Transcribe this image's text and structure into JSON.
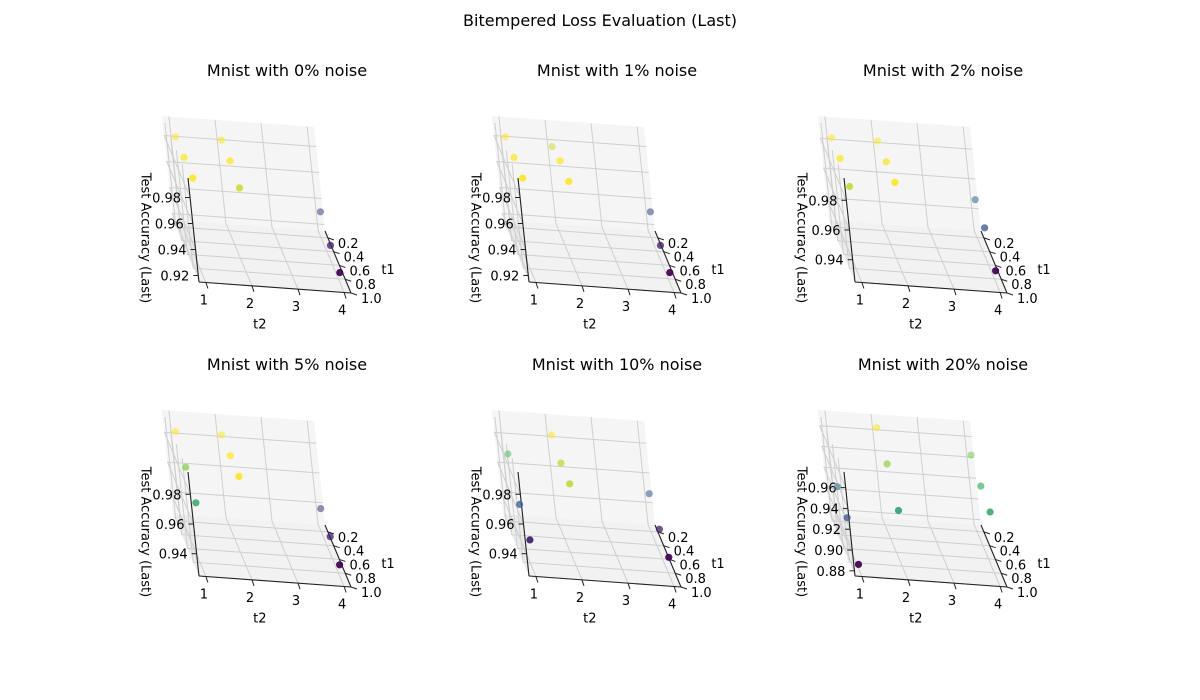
{
  "figure": {
    "suptitle": "Bitempered Loss Evaluation (Last)"
  },
  "chart_data": [
    {
      "type": "scatter3d",
      "title": "Mnist with 0% noise",
      "xlabel": "t1",
      "ylabel": "t2",
      "zlabel": "Test Accuracy (Last)",
      "x_ticks": [
        "0.2",
        "0.4",
        "0.6",
        "0.8",
        "1.0"
      ],
      "y_ticks": [
        "1",
        "2",
        "3",
        "4"
      ],
      "z_ticks": [
        "0.92",
        "0.94",
        "0.96",
        "0.98"
      ],
      "xlim": [
        0.1,
        1.0
      ],
      "ylim": [
        0.85,
        4.15
      ],
      "zlim": [
        0.915,
        0.995
      ],
      "colormap": "viridis",
      "points": [
        {
          "t1": 0.3,
          "t2": 1.0,
          "acc": 0.99
        },
        {
          "t1": 0.3,
          "t2": 2.0,
          "acc": 0.99
        },
        {
          "t1": 0.6,
          "t2": 1.0,
          "acc": 0.99
        },
        {
          "t1": 0.6,
          "t2": 2.0,
          "acc": 0.99
        },
        {
          "t1": 0.9,
          "t2": 1.0,
          "acc": 0.99
        },
        {
          "t1": 0.9,
          "t2": 2.0,
          "acc": 0.985
        },
        {
          "t1": 0.3,
          "t2": 4.0,
          "acc": 0.94
        },
        {
          "t1": 0.6,
          "t2": 4.0,
          "acc": 0.93
        },
        {
          "t1": 0.9,
          "t2": 4.0,
          "acc": 0.925
        }
      ]
    },
    {
      "type": "scatter3d",
      "title": "Mnist with 1% noise",
      "xlabel": "t1",
      "ylabel": "t2",
      "zlabel": "Test Accuracy (Last)",
      "x_ticks": [
        "0.2",
        "0.4",
        "0.6",
        "0.8",
        "1.0"
      ],
      "y_ticks": [
        "1",
        "2",
        "3",
        "4"
      ],
      "z_ticks": [
        "0.92",
        "0.94",
        "0.96",
        "0.98"
      ],
      "xlim": [
        0.1,
        1.0
      ],
      "ylim": [
        0.85,
        4.15
      ],
      "zlim": [
        0.915,
        0.995
      ],
      "colormap": "viridis",
      "points": [
        {
          "t1": 0.3,
          "t2": 1.0,
          "acc": 0.99
        },
        {
          "t1": 0.3,
          "t2": 2.0,
          "acc": 0.985
        },
        {
          "t1": 0.6,
          "t2": 1.0,
          "acc": 0.99
        },
        {
          "t1": 0.6,
          "t2": 2.0,
          "acc": 0.99
        },
        {
          "t1": 0.9,
          "t2": 1.0,
          "acc": 0.99
        },
        {
          "t1": 0.9,
          "t2": 2.0,
          "acc": 0.99
        },
        {
          "t1": 0.3,
          "t2": 4.0,
          "acc": 0.94
        },
        {
          "t1": 0.6,
          "t2": 4.0,
          "acc": 0.93
        },
        {
          "t1": 0.9,
          "t2": 4.0,
          "acc": 0.925
        }
      ]
    },
    {
      "type": "scatter3d",
      "title": "Mnist with 2% noise",
      "xlabel": "t1",
      "ylabel": "t2",
      "zlabel": "Test Accuracy (Last)",
      "x_ticks": [
        "0.2",
        "0.4",
        "0.6",
        "0.8",
        "1.0"
      ],
      "y_ticks": [
        "1",
        "2",
        "3",
        "4"
      ],
      "z_ticks": [
        "0.94",
        "0.96",
        "0.98"
      ],
      "xlim": [
        0.1,
        1.0
      ],
      "ylim": [
        0.85,
        4.15
      ],
      "zlim": [
        0.925,
        0.995
      ],
      "colormap": "viridis",
      "points": [
        {
          "t1": 0.3,
          "t2": 1.0,
          "acc": 0.99
        },
        {
          "t1": 0.3,
          "t2": 2.0,
          "acc": 0.99
        },
        {
          "t1": 0.6,
          "t2": 1.0,
          "acc": 0.99
        },
        {
          "t1": 0.6,
          "t2": 2.0,
          "acc": 0.99
        },
        {
          "t1": 0.9,
          "t2": 1.0,
          "acc": 0.985
        },
        {
          "t1": 0.9,
          "t2": 2.0,
          "acc": 0.99
        },
        {
          "t1": 0.3,
          "t2": 4.0,
          "acc": 0.955
        },
        {
          "t1": 0.6,
          "t2": 4.0,
          "acc": 0.95
        },
        {
          "t1": 0.9,
          "t2": 4.0,
          "acc": 0.935
        }
      ]
    },
    {
      "type": "scatter3d",
      "title": "Mnist with 5% noise",
      "xlabel": "t1",
      "ylabel": "t2",
      "zlabel": "Test Accuracy (Last)",
      "x_ticks": [
        "0.2",
        "0.4",
        "0.6",
        "0.8",
        "1.0"
      ],
      "y_ticks": [
        "1",
        "2",
        "3",
        "4"
      ],
      "z_ticks": [
        "0.94",
        "0.96",
        "0.98"
      ],
      "xlim": [
        0.1,
        1.0
      ],
      "ylim": [
        0.85,
        4.15
      ],
      "zlim": [
        0.925,
        0.995
      ],
      "colormap": "viridis",
      "points": [
        {
          "t1": 0.3,
          "t2": 1.0,
          "acc": 0.99
        },
        {
          "t1": 0.3,
          "t2": 2.0,
          "acc": 0.99
        },
        {
          "t1": 0.6,
          "t2": 1.0,
          "acc": 0.98
        },
        {
          "t1": 0.6,
          "t2": 2.0,
          "acc": 0.99
        },
        {
          "t1": 0.9,
          "t2": 1.0,
          "acc": 0.97
        },
        {
          "t1": 0.9,
          "t2": 2.0,
          "acc": 0.99
        },
        {
          "t1": 0.3,
          "t2": 4.0,
          "acc": 0.945
        },
        {
          "t1": 0.6,
          "t2": 4.0,
          "acc": 0.94
        },
        {
          "t1": 0.9,
          "t2": 4.0,
          "acc": 0.935
        }
      ]
    },
    {
      "type": "scatter3d",
      "title": "Mnist with 10% noise",
      "xlabel": "t1",
      "ylabel": "t2",
      "zlabel": "Test Accuracy (Last)",
      "x_ticks": [
        "0.2",
        "0.4",
        "0.6",
        "0.8",
        "1.0"
      ],
      "y_ticks": [
        "1",
        "2",
        "3",
        "4"
      ],
      "z_ticks": [
        "0.94",
        "0.96",
        "0.98"
      ],
      "xlim": [
        0.1,
        1.0
      ],
      "ylim": [
        0.85,
        4.15
      ],
      "zlim": [
        0.925,
        0.995
      ],
      "colormap": "viridis",
      "points": [
        {
          "t1": 0.3,
          "t2": 1.0,
          "acc": 0.975
        },
        {
          "t1": 0.3,
          "t2": 2.0,
          "acc": 0.99
        },
        {
          "t1": 0.6,
          "t2": 1.0,
          "acc": 0.955
        },
        {
          "t1": 0.6,
          "t2": 2.0,
          "acc": 0.985
        },
        {
          "t1": 0.9,
          "t2": 1.0,
          "acc": 0.945
        },
        {
          "t1": 0.9,
          "t2": 2.0,
          "acc": 0.985
        },
        {
          "t1": 0.3,
          "t2": 4.0,
          "acc": 0.955
        },
        {
          "t1": 0.6,
          "t2": 4.0,
          "acc": 0.945
        },
        {
          "t1": 0.9,
          "t2": 4.0,
          "acc": 0.94
        }
      ]
    },
    {
      "type": "scatter3d",
      "title": "Mnist with 20% noise",
      "xlabel": "t1",
      "ylabel": "t2",
      "zlabel": "Test Accuracy (Last)",
      "x_ticks": [
        "0.2",
        "0.4",
        "0.6",
        "0.8",
        "1.0"
      ],
      "y_ticks": [
        "1",
        "2",
        "3",
        "4"
      ],
      "z_ticks": [
        "0.88",
        "0.90",
        "0.92",
        "0.94",
        "0.96"
      ],
      "xlim": [
        0.1,
        1.0
      ],
      "ylim": [
        0.85,
        4.15
      ],
      "zlim": [
        0.875,
        0.975
      ],
      "colormap": "viridis",
      "points": [
        {
          "t1": 0.3,
          "t2": 1.0,
          "acc": 0.915
        },
        {
          "t1": 0.3,
          "t2": 2.0,
          "acc": 0.975
        },
        {
          "t1": 0.6,
          "t2": 1.0,
          "acc": 0.905
        },
        {
          "t1": 0.6,
          "t2": 2.0,
          "acc": 0.96
        },
        {
          "t1": 0.9,
          "t2": 1.0,
          "acc": 0.88
        },
        {
          "t1": 0.9,
          "t2": 2.0,
          "acc": 0.935
        },
        {
          "t1": 0.3,
          "t2": 4.0,
          "acc": 0.955
        },
        {
          "t1": 0.6,
          "t2": 4.0,
          "acc": 0.945
        },
        {
          "t1": 0.9,
          "t2": 4.0,
          "acc": 0.94
        }
      ]
    }
  ]
}
